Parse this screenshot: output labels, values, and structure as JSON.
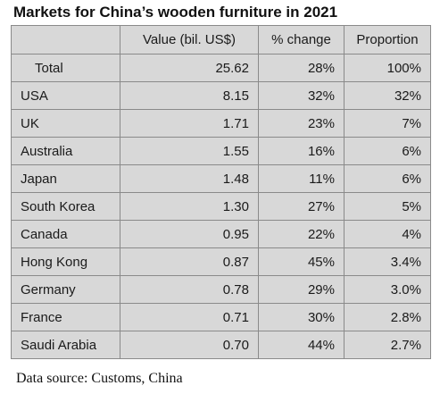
{
  "chart_data": {
    "type": "table",
    "title": "Markets for China’s wooden furniture in 2021",
    "columns": [
      "",
      "Value (bil. US$)",
      "% change",
      "Proportion"
    ],
    "rows": [
      {
        "market": "Total",
        "value": "25.62",
        "change": "28%",
        "proportion": "100%"
      },
      {
        "market": "USA",
        "value": "8.15",
        "change": "32%",
        "proportion": "32%"
      },
      {
        "market": "UK",
        "value": "1.71",
        "change": "23%",
        "proportion": "7%"
      },
      {
        "market": "Australia",
        "value": "1.55",
        "change": "16%",
        "proportion": "6%"
      },
      {
        "market": "Japan",
        "value": "1.48",
        "change": "11%",
        "proportion": "6%"
      },
      {
        "market": "South Korea",
        "value": "1.30",
        "change": "27%",
        "proportion": "5%"
      },
      {
        "market": "Canada",
        "value": "0.95",
        "change": "22%",
        "proportion": "4%"
      },
      {
        "market": "Hong Kong",
        "value": "0.87",
        "change": "45%",
        "proportion": "3.4%"
      },
      {
        "market": "Germany",
        "value": "0.78",
        "change": "29%",
        "proportion": "3.0%"
      },
      {
        "market": "France",
        "value": "0.71",
        "change": "30%",
        "proportion": "2.8%"
      },
      {
        "market": "Saudi Arabia",
        "value": "0.70",
        "change": "44%",
        "proportion": "2.7%"
      }
    ],
    "source": "Data source: Customs, China"
  },
  "colors": {
    "cell_background": "#d8d8d8",
    "border": "#8a8a8a",
    "text": "#1a1a1a"
  }
}
